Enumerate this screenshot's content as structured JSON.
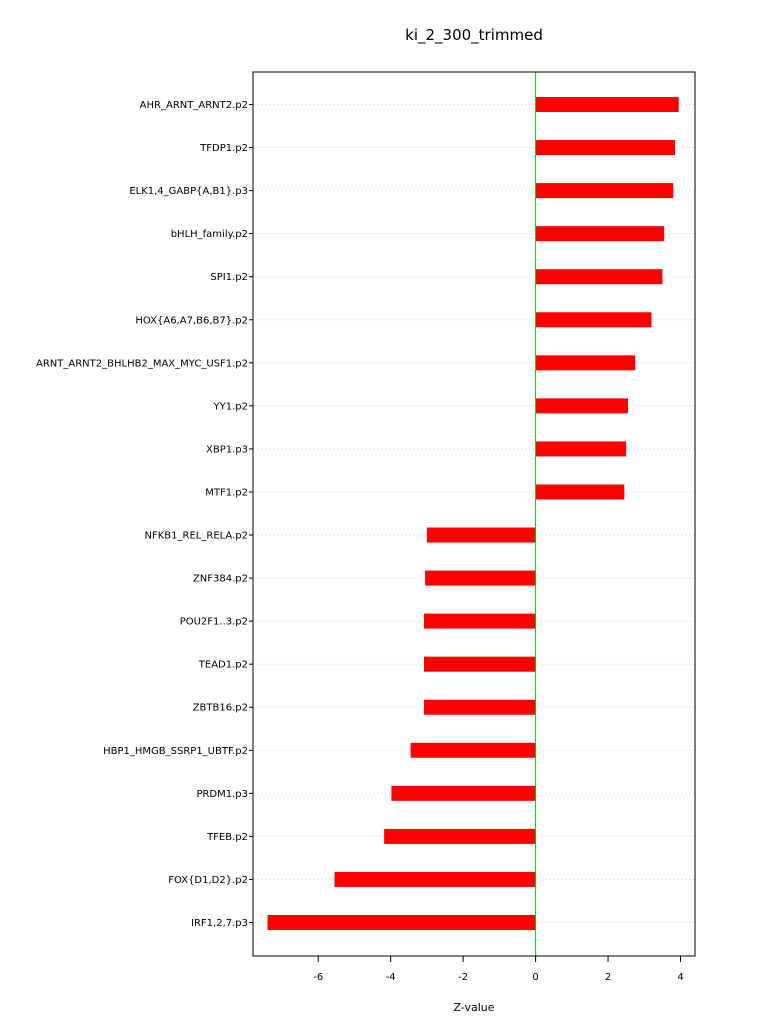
{
  "chart_data": {
    "type": "bar",
    "orientation": "horizontal",
    "title": "ki_2_300_trimmed",
    "xlabel": "Z-value",
    "ylabel": "",
    "xlim": [
      -7.8,
      4.4
    ],
    "xticks": [
      -6,
      -4,
      -2,
      0,
      2,
      4
    ],
    "grid": true,
    "categories": [
      "AHR_ARNT_ARNT2.p2",
      "TFDP1.p2",
      "ELK1,4_GABP{A,B1}.p3",
      "bHLH_family.p2",
      "SPI1.p2",
      "HOX{A6,A7,B6,B7}.p2",
      "ARNT_ARNT2_BHLHB2_MAX_MYC_USF1.p2",
      "YY1.p2",
      "XBP1.p3",
      "MTF1.p2",
      "NFKB1_REL_RELA.p2",
      "ZNF384.p2",
      "POU2F1..3.p2",
      "TEAD1.p2",
      "ZBTB16.p2",
      "HBP1_HMGB_SSRP1_UBTF.p2",
      "PRDM1.p3",
      "TFEB.p2",
      "FOX{D1,D2}.p2",
      "IRF1,2,7.p3"
    ],
    "values": [
      3.95,
      3.85,
      3.8,
      3.55,
      3.5,
      3.2,
      2.75,
      2.55,
      2.5,
      2.45,
      -3.0,
      -3.05,
      -3.08,
      -3.08,
      -3.08,
      -3.45,
      -3.98,
      -4.18,
      -5.55,
      -7.4
    ],
    "colors": {
      "bar": "#ff0000",
      "zero_line": "#00cc00",
      "grid": "#cccccc",
      "axis": "#000000"
    }
  }
}
